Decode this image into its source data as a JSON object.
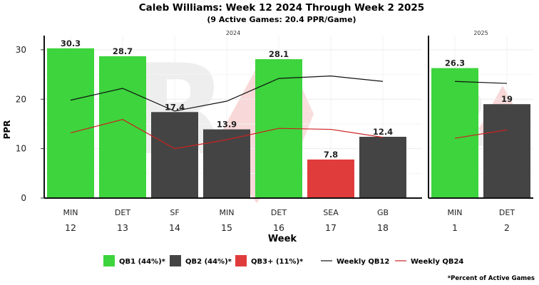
{
  "chart_data": {
    "type": "bar",
    "title": "Caleb Williams: Week 12 2024 Through Week 2 2025",
    "subtitle": "(9 Active Games: 20.4 PPR/Game)",
    "xlabel": "Week",
    "ylabel": "PPR",
    "ylim": [
      0,
      32
    ],
    "yticks": [
      0,
      10,
      20,
      30
    ],
    "grid": true,
    "legend_position": "bottom",
    "footnote": "*Percent of Active Games",
    "colors": {
      "QB1": "#3dd43d",
      "QB2": "#444444",
      "QB3": "#e03c3c",
      "weekly_qb12": "#111111",
      "weekly_qb24": "#cc2222"
    },
    "panels": [
      {
        "label": "2024",
        "weeks": [
          "12",
          "13",
          "14",
          "15",
          "16",
          "17",
          "18"
        ],
        "opponents": [
          "MIN",
          "DET",
          "SF",
          "MIN",
          "DET",
          "SEA",
          "GB"
        ],
        "values": [
          30.3,
          28.7,
          17.4,
          13.9,
          28.1,
          7.8,
          12.4
        ],
        "value_labels": [
          "30.3",
          "28.7",
          "17.4",
          "13.9",
          "28.1",
          "7.8",
          "12.4"
        ],
        "tiers": [
          "QB1",
          "QB1",
          "QB2",
          "QB2",
          "QB1",
          "QB3",
          "QB2"
        ],
        "weekly_qb12": [
          19.8,
          22.2,
          17.6,
          19.6,
          24.2,
          24.7,
          23.6
        ],
        "weekly_qb24": [
          13.2,
          15.9,
          10.0,
          11.8,
          14.1,
          13.9,
          12.3
        ]
      },
      {
        "label": "2025",
        "weeks": [
          "1",
          "2"
        ],
        "opponents": [
          "MIN",
          "DET"
        ],
        "values": [
          26.3,
          19.0
        ],
        "value_labels": [
          "26.3",
          "19"
        ],
        "tiers": [
          "QB1",
          "QB2"
        ],
        "weekly_qb12": [
          23.6,
          23.2
        ],
        "weekly_qb24": [
          12.1,
          13.8
        ]
      }
    ],
    "legend": [
      {
        "key": "QB1",
        "kind": "box",
        "label": "QB1 (44%)*"
      },
      {
        "key": "QB2",
        "kind": "box",
        "label": "QB2 (44%)*"
      },
      {
        "key": "QB3",
        "kind": "box",
        "label": "QB3+ (11%)*"
      },
      {
        "key": "weekly_qb12",
        "kind": "line",
        "label": "Weekly QB12"
      },
      {
        "key": "weekly_qb24",
        "kind": "line",
        "label": "Weekly QB24"
      }
    ]
  }
}
